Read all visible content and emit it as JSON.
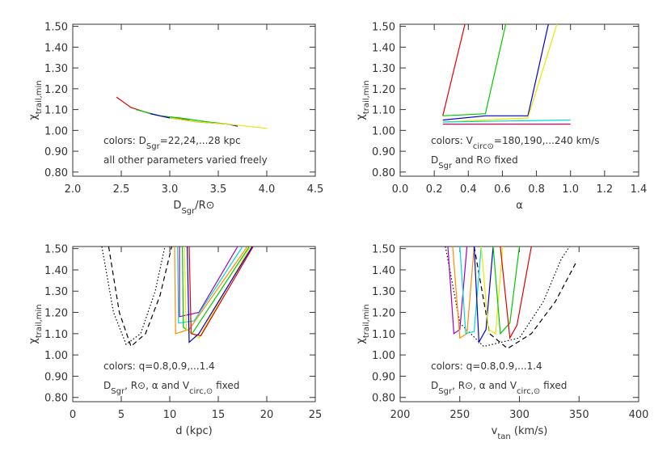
{
  "chart_data": [
    {
      "type": "line",
      "xlabel": [
        {
          "text": "D"
        },
        {
          "text": "Sgr",
          "sub": true
        },
        {
          "text": "/R⊙"
        }
      ],
      "ylabel": [
        {
          "text": "χ"
        },
        {
          "text": "trail,min",
          "sub": true
        }
      ],
      "annotations": [
        [
          {
            "text": "colors: D"
          },
          {
            "text": "Sgr",
            "sub": true
          },
          {
            "text": "=22,24,...28 kpc"
          }
        ],
        [
          {
            "text": "all other parameters varied freely"
          }
        ]
      ],
      "xlim": [
        2.0,
        4.5
      ],
      "ylim": [
        0.78,
        1.51
      ],
      "xticks": [
        {
          "value": 2.0,
          "label": "2.0"
        },
        {
          "value": 2.5,
          "label": "2.5"
        },
        {
          "value": 3.0,
          "label": "3.0"
        },
        {
          "value": 3.5,
          "label": "3.5"
        },
        {
          "value": 4.0,
          "label": "4.0"
        },
        {
          "value": 4.5,
          "label": "4.5"
        }
      ],
      "yticks": [
        {
          "value": 0.8,
          "label": "0.80"
        },
        {
          "value": 0.9,
          "label": "0.90"
        },
        {
          "value": 1.0,
          "label": "1.00"
        },
        {
          "value": 1.1,
          "label": "1.10"
        },
        {
          "value": 1.2,
          "label": "1.20"
        },
        {
          "value": 1.3,
          "label": "1.30"
        },
        {
          "value": 1.4,
          "label": "1.40"
        },
        {
          "value": 1.5,
          "label": "1.50"
        }
      ],
      "series": [
        {
          "color": "#e00000",
          "x": [
            2.45,
            2.6,
            2.8,
            3.0,
            3.2
          ],
          "values": [
            1.16,
            1.11,
            1.08,
            1.06,
            1.05
          ]
        },
        {
          "color": "#00c800",
          "x": [
            2.65,
            2.9,
            3.1,
            3.4,
            3.6
          ],
          "values": [
            1.1,
            1.07,
            1.06,
            1.04,
            1.03
          ]
        },
        {
          "color": "#0000d0",
          "x": [
            2.8,
            3.0,
            3.3,
            3.6,
            3.7
          ],
          "values": [
            1.08,
            1.06,
            1.04,
            1.03,
            1.02
          ]
        },
        {
          "color": "#e8e800",
          "x": [
            3.0,
            3.3,
            3.6,
            3.8,
            4.0
          ],
          "values": [
            1.06,
            1.04,
            1.03,
            1.02,
            1.01
          ]
        }
      ]
    },
    {
      "type": "line",
      "xlabel": [
        {
          "text": "α"
        }
      ],
      "ylabel": [
        {
          "text": "χ"
        },
        {
          "text": "trail,min",
          "sub": true
        }
      ],
      "annotations": [
        [
          {
            "text": "colors: V"
          },
          {
            "text": "circ⊙",
            "sub": true
          },
          {
            "text": "=180,190,...240 km/s"
          }
        ],
        [
          {
            "text": "D"
          },
          {
            "text": "Sgr",
            "sub": true
          },
          {
            "text": " and R⊙ fixed"
          }
        ]
      ],
      "xlim": [
        0.0,
        1.4
      ],
      "ylim": [
        0.78,
        1.51
      ],
      "xticks": [
        {
          "value": 0.0,
          "label": "0.0"
        },
        {
          "value": 0.2,
          "label": "0.2"
        },
        {
          "value": 0.4,
          "label": "0.4"
        },
        {
          "value": 0.6,
          "label": "0.6"
        },
        {
          "value": 0.8,
          "label": "0.8"
        },
        {
          "value": 1.0,
          "label": "1.0"
        },
        {
          "value": 1.2,
          "label": "1.2"
        },
        {
          "value": 1.4,
          "label": "1.4"
        }
      ],
      "yticks": [
        {
          "value": 0.8,
          "label": "0.80"
        },
        {
          "value": 0.9,
          "label": "0.90"
        },
        {
          "value": 1.0,
          "label": "1.00"
        },
        {
          "value": 1.1,
          "label": "1.10"
        },
        {
          "value": 1.2,
          "label": "1.20"
        },
        {
          "value": 1.3,
          "label": "1.30"
        },
        {
          "value": 1.4,
          "label": "1.40"
        },
        {
          "value": 1.5,
          "label": "1.50"
        }
      ],
      "series": [
        {
          "color": "#e00000",
          "x": [
            0.25,
            0.38
          ],
          "values": [
            1.07,
            1.51
          ]
        },
        {
          "color": "#00c800",
          "x": [
            0.25,
            0.5,
            0.62
          ],
          "values": [
            1.07,
            1.08,
            1.51
          ]
        },
        {
          "color": "#0000d0",
          "x": [
            0.25,
            0.5,
            0.75,
            0.87
          ],
          "values": [
            1.05,
            1.07,
            1.07,
            1.51
          ]
        },
        {
          "color": "#e8e800",
          "x": [
            0.25,
            0.75,
            0.92
          ],
          "values": [
            1.04,
            1.06,
            1.51
          ]
        },
        {
          "color": "#00d8d8",
          "x": [
            0.25,
            0.6,
            1.0
          ],
          "values": [
            1.04,
            1.045,
            1.05
          ]
        },
        {
          "color": "#e00060",
          "x": [
            0.25,
            1.0
          ],
          "values": [
            1.03,
            1.03
          ]
        }
      ]
    },
    {
      "type": "line",
      "xlabel": [
        {
          "text": "d (kpc)"
        }
      ],
      "ylabel": [
        {
          "text": "χ"
        },
        {
          "text": "trail,min",
          "sub": true
        }
      ],
      "annotations": [
        [
          {
            "text": "colors: q=0.8,0.9,...1.4"
          }
        ],
        [
          {
            "text": "D"
          },
          {
            "text": "Sgr",
            "sub": true
          },
          {
            "text": ", R⊙, α and V"
          },
          {
            "text": "circ,⊙",
            "sub": true
          },
          {
            "text": " fixed"
          }
        ]
      ],
      "xlim": [
        0,
        25
      ],
      "ylim": [
        0.78,
        1.51
      ],
      "xticks": [
        0,
        5,
        10,
        15,
        20,
        25
      ],
      "yticks": [
        {
          "value": 0.8,
          "label": "0.80"
        },
        {
          "value": 0.9,
          "label": "0.90"
        },
        {
          "value": 1.0,
          "label": "1.00"
        },
        {
          "value": 1.1,
          "label": "1.10"
        },
        {
          "value": 1.2,
          "label": "1.20"
        },
        {
          "value": 1.3,
          "label": "1.30"
        },
        {
          "value": 1.4,
          "label": "1.40"
        },
        {
          "value": 1.5,
          "label": "1.50"
        }
      ],
      "series": [
        {
          "color": "#000000",
          "dash": "dotted",
          "x": [
            3.0,
            4.2,
            5.5,
            7.0,
            8.5,
            9.5
          ],
          "values": [
            1.51,
            1.2,
            1.05,
            1.1,
            1.3,
            1.51
          ]
        },
        {
          "color": "#000000",
          "dash": "dashed",
          "x": [
            3.7,
            4.8,
            6.0,
            7.5,
            9.0,
            10.2
          ],
          "values": [
            1.51,
            1.2,
            1.04,
            1.1,
            1.28,
            1.51
          ]
        },
        {
          "color": "#a000c0",
          "x": [
            11.0,
            11.0,
            13.0,
            17.0
          ],
          "values": [
            1.51,
            1.18,
            1.2,
            1.51
          ]
        },
        {
          "color": "#00d8d8",
          "x": [
            10.8,
            10.9,
            12.5,
            17.5
          ],
          "values": [
            1.51,
            1.15,
            1.16,
            1.51
          ]
        },
        {
          "color": "#ff8c00",
          "x": [
            10.5,
            10.6,
            12.0,
            18.0
          ],
          "values": [
            1.51,
            1.1,
            1.12,
            1.51
          ]
        },
        {
          "color": "#00c800",
          "x": [
            11.3,
            11.4,
            12.3,
            18.2
          ],
          "values": [
            1.51,
            1.13,
            1.1,
            1.51
          ]
        },
        {
          "color": "#e8e800",
          "x": [
            11.5,
            11.7,
            13.0,
            18.3
          ],
          "values": [
            1.51,
            1.12,
            1.08,
            1.51
          ]
        },
        {
          "color": "#e00000",
          "x": [
            12.0,
            12.2,
            13.2,
            18.6
          ],
          "values": [
            1.51,
            1.1,
            1.09,
            1.51
          ]
        },
        {
          "color": "#0000d0",
          "x": [
            11.8,
            12.0,
            13.0,
            18.5
          ],
          "values": [
            1.51,
            1.06,
            1.1,
            1.51
          ]
        }
      ]
    },
    {
      "type": "line",
      "xlabel": [
        {
          "text": "v"
        },
        {
          "text": "tan",
          "sub": true
        },
        {
          "text": " (km/s)"
        }
      ],
      "ylabel": [
        {
          "text": "χ"
        },
        {
          "text": "trail,min",
          "sub": true
        }
      ],
      "annotations": [
        [
          {
            "text": "colors: q=0.8,0.9,...1.4"
          }
        ],
        [
          {
            "text": "D"
          },
          {
            "text": "Sgr",
            "sub": true
          },
          {
            "text": ", R⊙, α and V"
          },
          {
            "text": "circ,⊙",
            "sub": true
          },
          {
            "text": " fixed"
          }
        ]
      ],
      "xlim": [
        200,
        400
      ],
      "ylim": [
        0.78,
        1.51
      ],
      "xticks": [
        200,
        250,
        300,
        350,
        400
      ],
      "yticks": [
        {
          "value": 0.8,
          "label": "0.80"
        },
        {
          "value": 0.9,
          "label": "0.90"
        },
        {
          "value": 1.0,
          "label": "1.00"
        },
        {
          "value": 1.1,
          "label": "1.10"
        },
        {
          "value": 1.2,
          "label": "1.20"
        },
        {
          "value": 1.3,
          "label": "1.30"
        },
        {
          "value": 1.4,
          "label": "1.40"
        },
        {
          "value": 1.5,
          "label": "1.50"
        }
      ],
      "series": [
        {
          "color": "#000000",
          "dash": "dotted",
          "x": [
            238,
            250,
            270,
            300,
            320,
            335,
            342
          ],
          "values": [
            1.51,
            1.15,
            1.04,
            1.08,
            1.25,
            1.45,
            1.51
          ]
        },
        {
          "color": "#000000",
          "dash": "dashed",
          "x": [
            262,
            275,
            290,
            310,
            330,
            348
          ],
          "values": [
            1.51,
            1.1,
            1.03,
            1.1,
            1.25,
            1.44
          ]
        },
        {
          "color": "#a000c0",
          "x": [
            240,
            245,
            250,
            256
          ],
          "values": [
            1.51,
            1.1,
            1.12,
            1.51
          ]
        },
        {
          "color": "#ff8c00",
          "x": [
            244,
            250,
            256,
            262
          ],
          "values": [
            1.51,
            1.08,
            1.1,
            1.51
          ]
        },
        {
          "color": "#00d8d8",
          "x": [
            250,
            255,
            262,
            268
          ],
          "values": [
            1.51,
            1.1,
            1.11,
            1.51
          ]
        },
        {
          "color": "#0000d0",
          "x": [
            262,
            266,
            272,
            278
          ],
          "values": [
            1.51,
            1.06,
            1.12,
            1.51
          ]
        },
        {
          "color": "#e8e800",
          "x": [
            268,
            274,
            280,
            286
          ],
          "values": [
            1.51,
            1.12,
            1.1,
            1.51
          ]
        },
        {
          "color": "#00c800",
          "x": [
            278,
            284,
            292,
            300
          ],
          "values": [
            1.51,
            1.1,
            1.15,
            1.51
          ]
        },
        {
          "color": "#e00000",
          "x": [
            284,
            292,
            298,
            310
          ],
          "values": [
            1.51,
            1.08,
            1.14,
            1.51
          ]
        }
      ]
    }
  ]
}
